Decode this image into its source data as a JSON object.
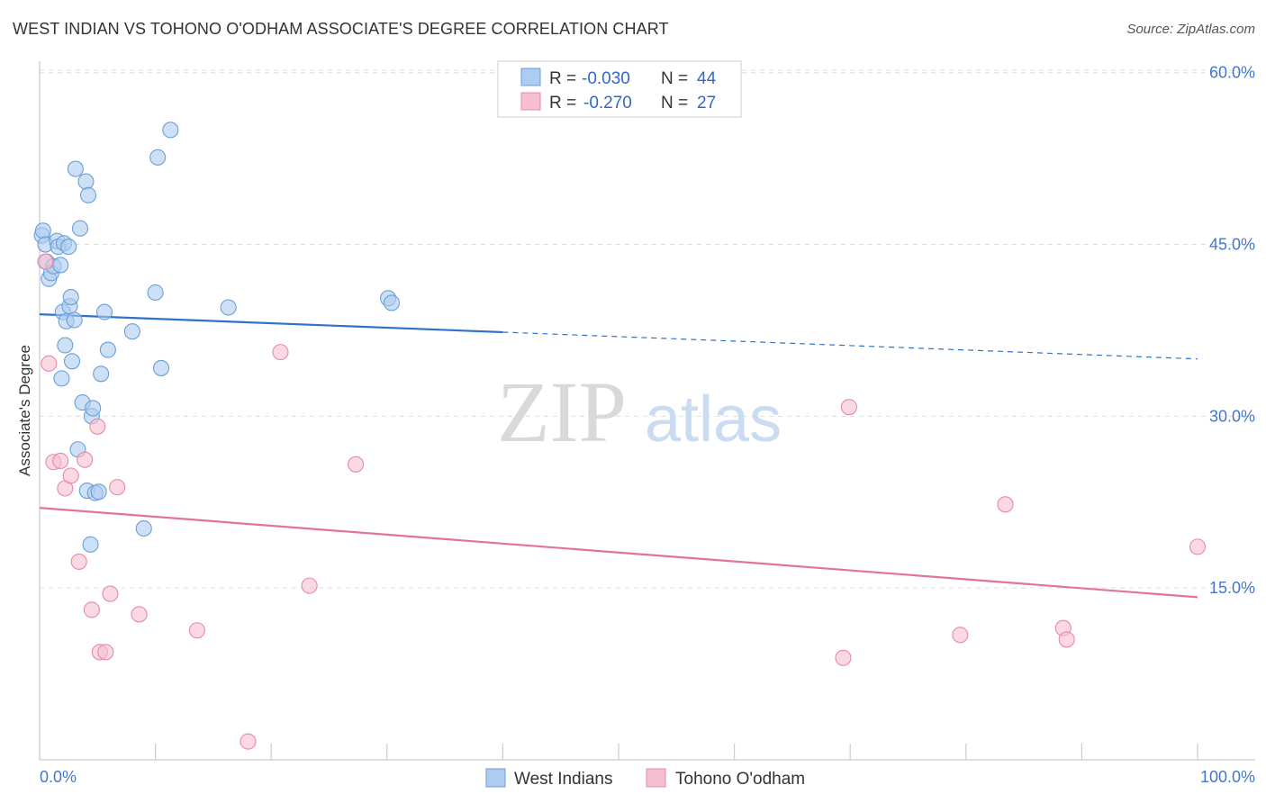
{
  "title": "WEST INDIAN VS TOHONO O'ODHAM ASSOCIATE'S DEGREE CORRELATION CHART",
  "source": "Source: ZipAtlas.com",
  "watermark": {
    "zip": "ZIP",
    "atlas": "atlas"
  },
  "legend": {
    "r_label": "R =",
    "n_label": "N =",
    "rows": [
      {
        "r": "-0.030",
        "n": "44"
      },
      {
        "r": "-0.270",
        "n": "27"
      }
    ]
  },
  "colors": {
    "blue_fill": "#aecbf0",
    "blue_stroke": "#6a9fd8",
    "blue_line": "#2f72c9",
    "pink_fill": "#f6bfd0",
    "pink_stroke": "#e68aa8",
    "pink_line": "#e2739c"
  },
  "chart_data": {
    "type": "scatter",
    "title": "WEST INDIAN VS TOHONO O'ODHAM ASSOCIATE'S DEGREE CORRELATION CHART",
    "xlabel": "",
    "ylabel": "Associate's Degree",
    "xlim": [
      0,
      100
    ],
    "ylim": [
      0,
      61
    ],
    "x_tick_labels": {
      "min": "0.0%",
      "max": "100.0%"
    },
    "y_ticks": [
      {
        "value": 15,
        "label": "15.0%"
      },
      {
        "value": 30,
        "label": "30.0%"
      },
      {
        "value": 45,
        "label": "45.0%"
      },
      {
        "value": 60,
        "label": "60.0%"
      }
    ],
    "series": [
      {
        "name": "West Indians",
        "color": "blue",
        "trend": {
          "x0": 0,
          "y0": 38.9,
          "x_solid_end": 40,
          "x1": 100,
          "y1": 35.0
        },
        "points": [
          [
            0.2,
            45.8
          ],
          [
            0.3,
            46.2
          ],
          [
            0.5,
            45.0
          ],
          [
            0.6,
            43.5
          ],
          [
            0.8,
            42.0
          ],
          [
            1.0,
            42.5
          ],
          [
            1.2,
            43.1
          ],
          [
            1.5,
            45.3
          ],
          [
            1.6,
            44.8
          ],
          [
            1.8,
            43.2
          ],
          [
            1.9,
            33.3
          ],
          [
            2.0,
            39.1
          ],
          [
            2.1,
            45.1
          ],
          [
            2.2,
            36.2
          ],
          [
            2.3,
            38.3
          ],
          [
            2.5,
            44.8
          ],
          [
            2.6,
            39.6
          ],
          [
            2.7,
            40.4
          ],
          [
            2.8,
            34.8
          ],
          [
            3.0,
            38.4
          ],
          [
            3.1,
            51.6
          ],
          [
            3.3,
            27.1
          ],
          [
            3.5,
            46.4
          ],
          [
            3.7,
            31.2
          ],
          [
            4.0,
            50.5
          ],
          [
            4.1,
            23.5
          ],
          [
            4.2,
            49.3
          ],
          [
            4.4,
            18.8
          ],
          [
            4.5,
            30.0
          ],
          [
            4.6,
            30.7
          ],
          [
            4.8,
            23.3
          ],
          [
            5.1,
            23.4
          ],
          [
            5.3,
            33.7
          ],
          [
            5.6,
            39.1
          ],
          [
            5.9,
            35.8
          ],
          [
            8.0,
            37.4
          ],
          [
            9.0,
            20.2
          ],
          [
            10.0,
            40.8
          ],
          [
            10.2,
            52.6
          ],
          [
            10.5,
            34.2
          ],
          [
            11.3,
            55.0
          ],
          [
            16.3,
            39.5
          ],
          [
            30.1,
            40.3
          ],
          [
            30.4,
            39.9
          ]
        ]
      },
      {
        "name": "Tohono O'odham",
        "color": "pink",
        "trend": {
          "x0": 0,
          "y0": 22.0,
          "x1": 100,
          "y1": 14.2
        },
        "points": [
          [
            0.5,
            43.5
          ],
          [
            0.8,
            34.6
          ],
          [
            1.2,
            26.0
          ],
          [
            1.8,
            26.1
          ],
          [
            2.2,
            23.7
          ],
          [
            2.7,
            24.8
          ],
          [
            3.4,
            17.3
          ],
          [
            3.9,
            26.2
          ],
          [
            4.5,
            13.1
          ],
          [
            5.0,
            29.1
          ],
          [
            5.2,
            9.4
          ],
          [
            5.7,
            9.4
          ],
          [
            6.1,
            14.5
          ],
          [
            6.7,
            23.8
          ],
          [
            8.6,
            12.7
          ],
          [
            13.6,
            11.3
          ],
          [
            18.0,
            1.6
          ],
          [
            20.8,
            35.6
          ],
          [
            23.3,
            15.2
          ],
          [
            27.3,
            25.8
          ],
          [
            69.4,
            8.9
          ],
          [
            69.9,
            30.8
          ],
          [
            79.5,
            10.9
          ],
          [
            83.4,
            22.3
          ],
          [
            88.4,
            11.5
          ],
          [
            88.7,
            10.5
          ],
          [
            100.0,
            18.6
          ]
        ]
      }
    ]
  }
}
